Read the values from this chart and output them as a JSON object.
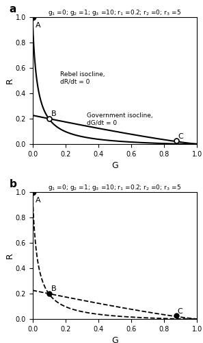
{
  "g1": 0,
  "g2": 1,
  "g3": 10,
  "r1": 0.2,
  "r2": 0,
  "r3": 5,
  "title_str": "g$_1$ =0; g$_2$ =1; g$_3$ =10; r$_1$ =0.2; r$_2$ =0; r$_3$ =5",
  "eq_A": [
    0.0,
    1.0
  ],
  "eq_B": [
    0.1,
    0.2
  ],
  "eq_C": [
    0.875,
    0.025
  ],
  "rebel_iso_a": 0.0297,
  "rebel_iso_b": 0.029,
  "rebel_iso_c": 0.032,
  "gov_iso_p": 0.226,
  "gov_iso_m": 1.18,
  "rebel_label": "Rebel isocline,\ndR/dt = 0",
  "gov_label": "Government isocline,\ndG/dt = 0",
  "xlabel": "G",
  "ylabel": "R"
}
